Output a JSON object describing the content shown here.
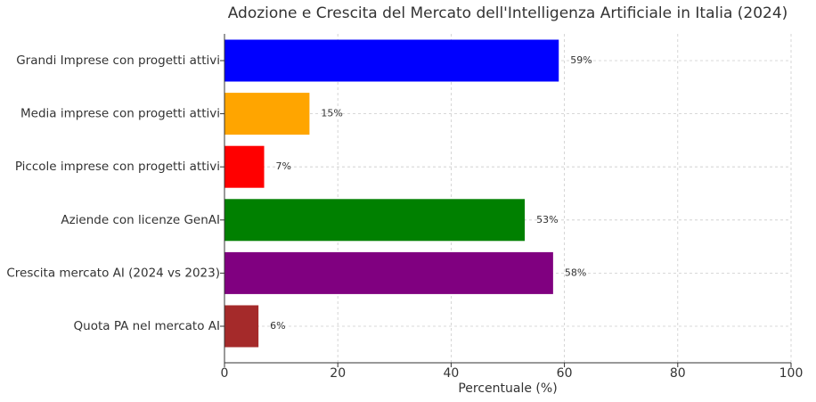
{
  "chart_data": {
    "type": "barh",
    "title": "Adozione e Crescita del Mercato dell'Intelligenza Artificiale in Italia (2024)",
    "x_label": "Percentuale (%)",
    "categories": [
      "Grandi Imprese con progetti attivi",
      "Media imprese con progetti attivi",
      "Piccole imprese con progetti attivi",
      "Aziende con licenze GenAI",
      "Crescita mercato AI (2024 vs 2023)",
      "Quota PA nel mercato AI"
    ],
    "values": [
      59,
      15,
      7,
      53,
      58,
      6
    ],
    "value_labels": [
      "59%",
      "15%",
      "7%",
      "53%",
      "58%",
      "6%"
    ],
    "colors": [
      "#0000ff",
      "#ffa500",
      "#ff0000",
      "#008000",
      "#800080",
      "#a52a2a"
    ],
    "xlim": [
      0,
      100
    ],
    "xticks": [
      0,
      20,
      40,
      60,
      80,
      100
    ],
    "grid": true
  }
}
